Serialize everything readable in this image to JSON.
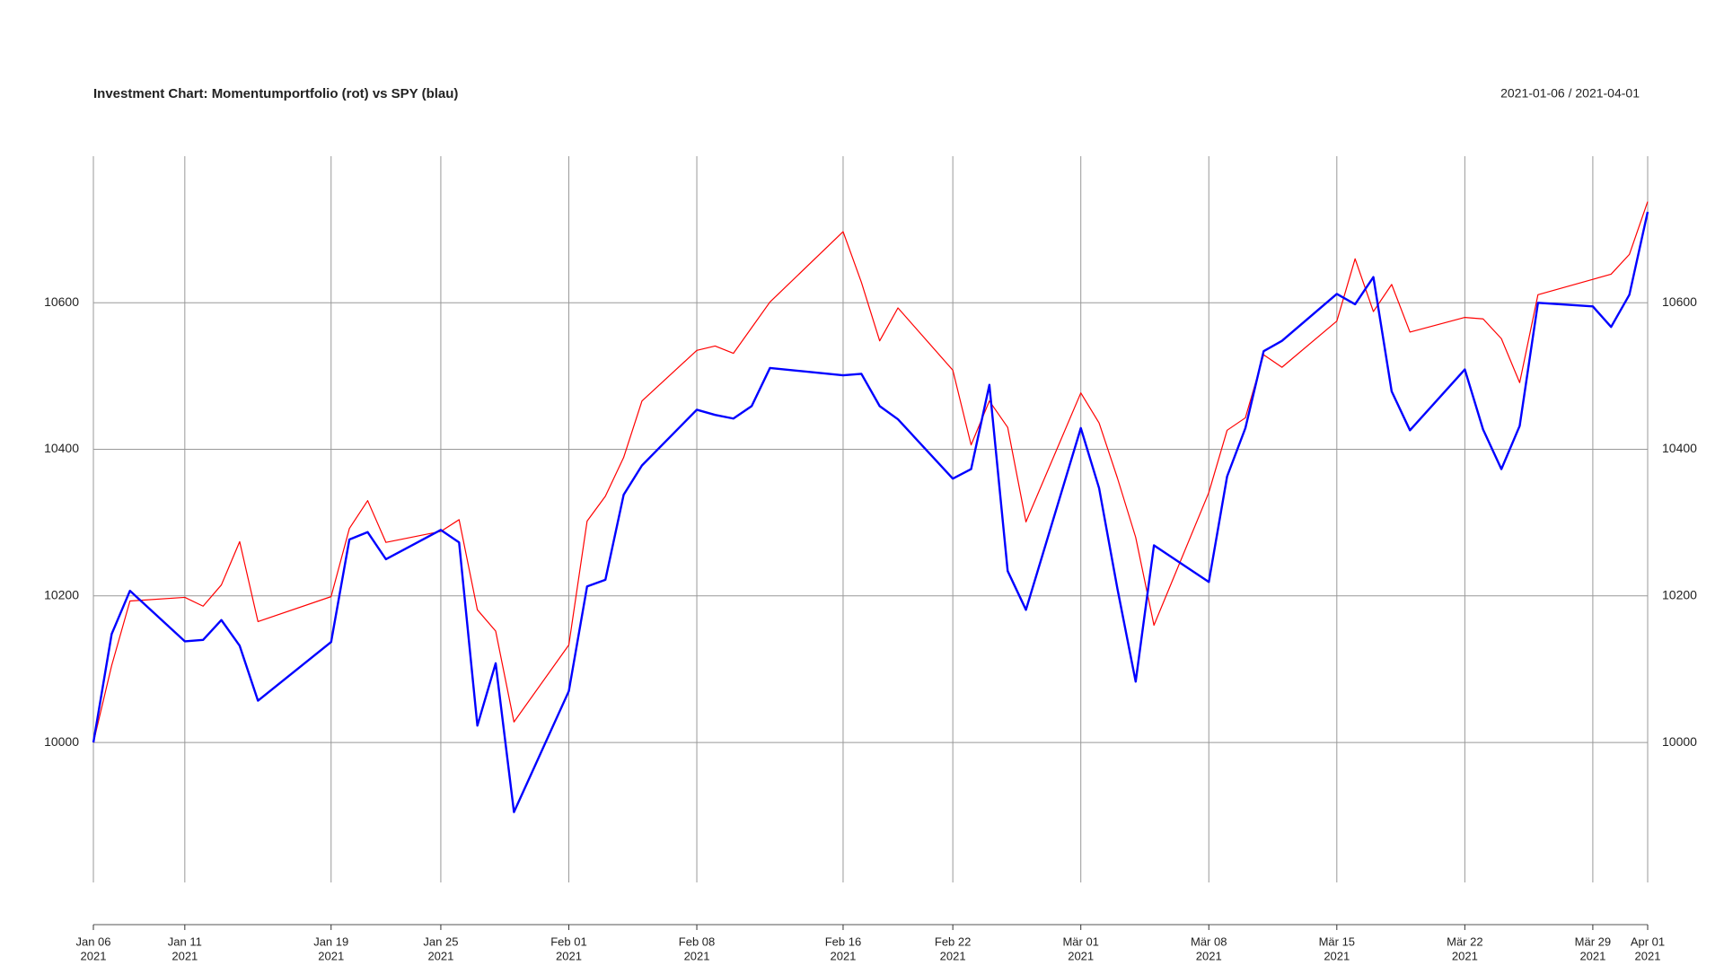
{
  "chart_data": {
    "type": "line",
    "title": "Investment Chart: Momentumportfolio (rot) vs SPY (blau)",
    "subtitle": "2021-01-06 / 2021-04-01",
    "x": [
      "2021-01-06",
      "2021-01-07",
      "2021-01-08",
      "2021-01-11",
      "2021-01-12",
      "2021-01-13",
      "2021-01-14",
      "2021-01-15",
      "2021-01-19",
      "2021-01-20",
      "2021-01-21",
      "2021-01-22",
      "2021-01-25",
      "2021-01-26",
      "2021-01-27",
      "2021-01-28",
      "2021-01-29",
      "2021-02-01",
      "2021-02-02",
      "2021-02-03",
      "2021-02-04",
      "2021-02-05",
      "2021-02-08",
      "2021-02-09",
      "2021-02-10",
      "2021-02-11",
      "2021-02-12",
      "2021-02-16",
      "2021-02-17",
      "2021-02-18",
      "2021-02-19",
      "2021-02-22",
      "2021-02-23",
      "2021-02-24",
      "2021-02-25",
      "2021-02-26",
      "2021-03-01",
      "2021-03-02",
      "2021-03-03",
      "2021-03-04",
      "2021-03-05",
      "2021-03-08",
      "2021-03-09",
      "2021-03-10",
      "2021-03-11",
      "2021-03-12",
      "2021-03-15",
      "2021-03-16",
      "2021-03-17",
      "2021-03-18",
      "2021-03-19",
      "2021-03-22",
      "2021-03-23",
      "2021-03-24",
      "2021-03-25",
      "2021-03-26",
      "2021-03-29",
      "2021-03-30",
      "2021-03-31",
      "2021-04-01"
    ],
    "series": [
      {
        "color": "#ff0000",
        "width": 1.2,
        "values": [
          10000,
          10105,
          10193,
          10198,
          10186,
          10215,
          10274,
          10165,
          10199,
          10292,
          10330,
          10273,
          10288,
          10304,
          10181,
          10152,
          10028,
          10133,
          10302,
          10336,
          10389,
          10466,
          10535,
          10541,
          10531,
          10566,
          10601,
          10697,
          10628,
          10548,
          10593,
          10508,
          10406,
          10466,
          10430,
          10301,
          10477,
          10436,
          10361,
          10280,
          10160,
          10341,
          10426,
          10443,
          10529,
          10512,
          10575,
          10660,
          10588,
          10625,
          10560,
          10580,
          10578,
          10551,
          10491,
          10611,
          10632,
          10639,
          10666,
          10738
        ]
      },
      {
        "color": "#0000ff",
        "width": 2.4,
        "values": [
          10000,
          10148,
          10207,
          10138,
          10140,
          10167,
          10132,
          10057,
          10137,
          10277,
          10287,
          10250,
          10290,
          10273,
          10023,
          10108,
          9905,
          10070,
          10213,
          10222,
          10338,
          10378,
          10454,
          10447,
          10442,
          10459,
          10511,
          10501,
          10503,
          10459,
          10441,
          10360,
          10373,
          10488,
          10234,
          10181,
          10429,
          10347,
          10210,
          10083,
          10269,
          10219,
          10363,
          10429,
          10534,
          10548,
          10612,
          10598,
          10635,
          10479,
          10426,
          10509,
          10427,
          10373,
          10432,
          10600,
          10595,
          10567,
          10611,
          10724
        ]
      }
    ],
    "xlim": [
      "2021-01-06",
      "2021-04-01"
    ],
    "xticks": [
      {
        "value": "2021-01-06",
        "label": [
          "Jan 06",
          "2021"
        ]
      },
      {
        "value": "2021-01-11",
        "label": [
          "Jan 11",
          "2021"
        ]
      },
      {
        "value": "2021-01-19",
        "label": [
          "Jan 19",
          "2021"
        ]
      },
      {
        "value": "2021-01-25",
        "label": [
          "Jan 25",
          "2021"
        ]
      },
      {
        "value": "2021-02-01",
        "label": [
          "Feb 01",
          "2021"
        ]
      },
      {
        "value": "2021-02-08",
        "label": [
          "Feb 08",
          "2021"
        ]
      },
      {
        "value": "2021-02-16",
        "label": [
          "Feb 16",
          "2021"
        ]
      },
      {
        "value": "2021-02-22",
        "label": [
          "Feb 22",
          "2021"
        ]
      },
      {
        "value": "2021-03-01",
        "label": [
          "Mär 01",
          "2021"
        ]
      },
      {
        "value": "2021-03-08",
        "label": [
          "Mär 08",
          "2021"
        ]
      },
      {
        "value": "2021-03-15",
        "label": [
          "Mär 15",
          "2021"
        ]
      },
      {
        "value": "2021-03-22",
        "label": [
          "Mär 22",
          "2021"
        ]
      },
      {
        "value": "2021-03-29",
        "label": [
          "Mär 29",
          "2021"
        ]
      },
      {
        "value": "2021-04-01",
        "label": [
          "Apr 01",
          "2021"
        ]
      }
    ],
    "ylim": [
      9809,
      10800
    ],
    "yticks": [
      10000,
      10200,
      10400,
      10600
    ],
    "grid": true
  }
}
